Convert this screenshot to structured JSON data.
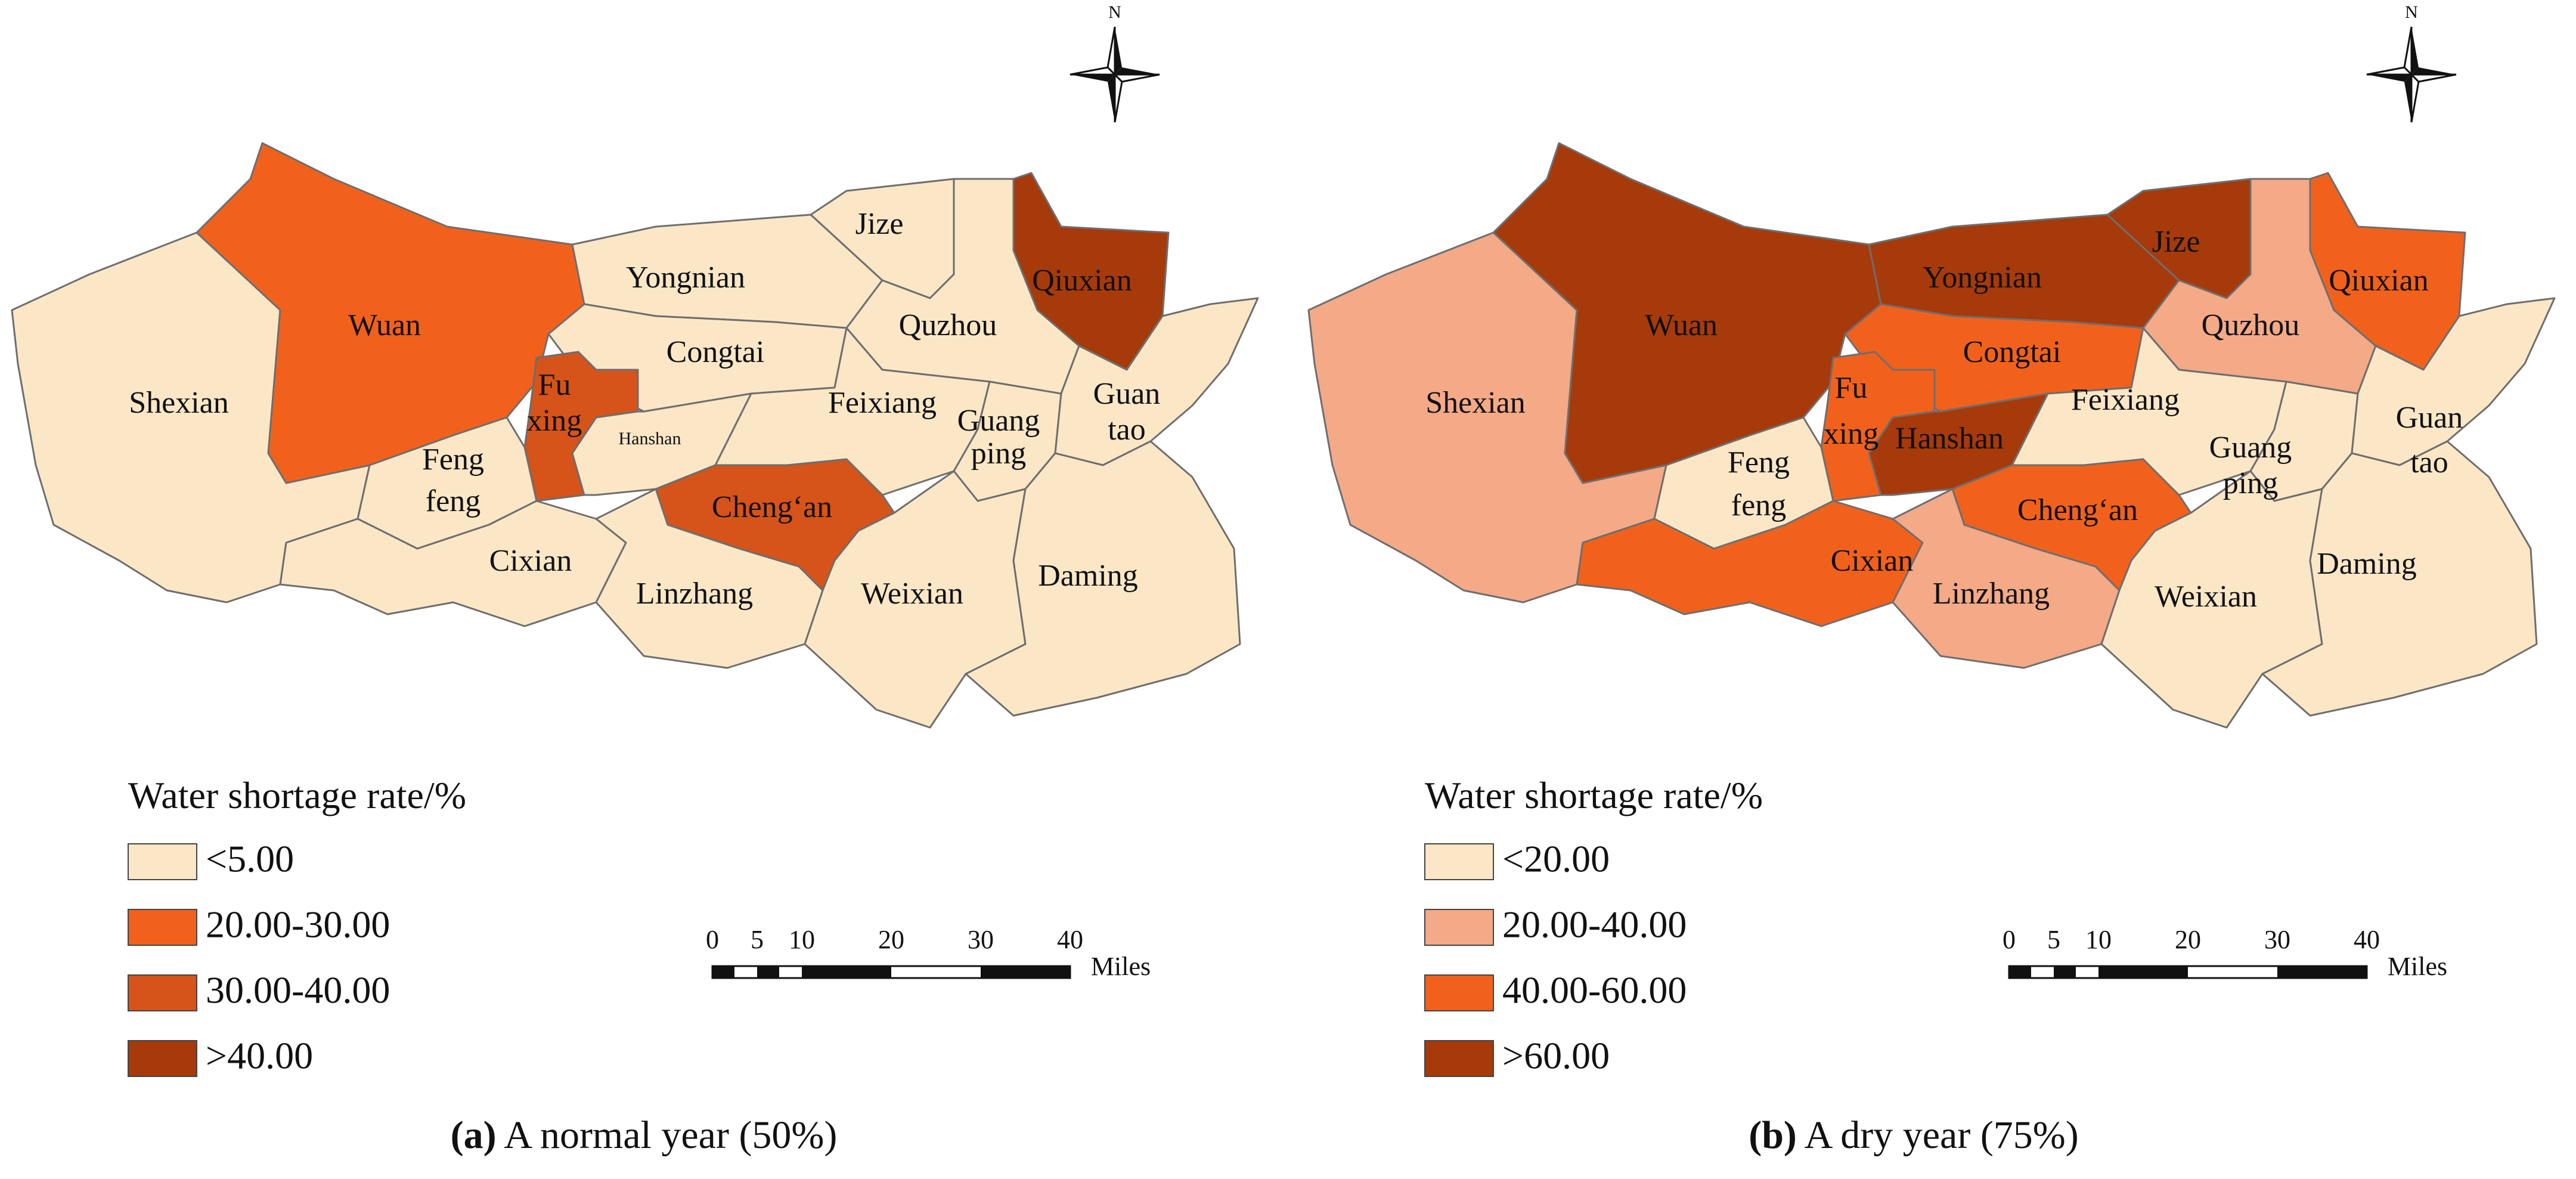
{
  "colors": {
    "lt5": "#fbe7c6",
    "c20_30": "#f2611c",
    "c30_40": "#d6531a",
    "gt40": "#a63a0a",
    "lt20": "#fbe7c6",
    "c20_40": "#f4a987",
    "c40_60": "#f2611c",
    "gt60": "#a63a0a"
  },
  "panels": [
    {
      "id": "a",
      "caption_letter": "(a)",
      "caption_text": " A normal year (50%)",
      "legend_title": "Water shortage rate/%",
      "legend": [
        {
          "label": "<5.00",
          "color_key": "lt5"
        },
        {
          "label": "20.00-30.00",
          "color_key": "c20_30"
        },
        {
          "label": "30.00-40.00",
          "color_key": "c30_40"
        },
        {
          "label": ">40.00",
          "color_key": "gt40"
        }
      ],
      "regions": {
        "Wuan": "c20_30",
        "Shexian": "lt5",
        "Yongnian": "lt5",
        "Jize": "lt5",
        "Qiuxian": "gt40",
        "Quzhou": "lt5",
        "Congtai": "lt5",
        "Fuxing": "c30_40",
        "Hanshan": "lt5",
        "Fengfeng": "lt5",
        "Cixian": "lt5",
        "Linzhang": "lt5",
        "Chengan": "c30_40",
        "Feixiang": "lt5",
        "Guangping": "lt5",
        "Guantao": "lt5",
        "Weixian": "lt5",
        "Daming": "lt5"
      }
    },
    {
      "id": "b",
      "caption_letter": "(b)",
      "caption_text": " A dry year (75%)",
      "legend_title": "Water shortage rate/%",
      "legend": [
        {
          "label": "<20.00",
          "color_key": "lt20"
        },
        {
          "label": "20.00-40.00",
          "color_key": "c20_40"
        },
        {
          "label": "40.00-60.00",
          "color_key": "c40_60"
        },
        {
          "label": ">60.00",
          "color_key": "gt60"
        }
      ],
      "regions": {
        "Wuan": "gt60",
        "Shexian": "c20_40",
        "Yongnian": "gt60",
        "Jize": "gt60",
        "Qiuxian": "c40_60",
        "Quzhou": "c20_40",
        "Congtai": "c40_60",
        "Fuxing": "c40_60",
        "Hanshan": "gt60",
        "Fengfeng": "lt20",
        "Cixian": "c40_60",
        "Linzhang": "c20_40",
        "Chengan": "c40_60",
        "Feixiang": "lt20",
        "Guangping": "lt20",
        "Guantao": "lt20",
        "Weixian": "lt20",
        "Daming": "lt20"
      }
    }
  ],
  "labels": {
    "Wuan": "Wuan",
    "Shexian": "Shexian",
    "Yongnian": "Yongnian",
    "Jize": "Jize",
    "Qiuxian": "Qiuxian",
    "Quzhou": "Quzhou",
    "Congtai": "Congtai",
    "Fuxing_1": "Fu",
    "Fuxing_2": "xing",
    "Hanshan": "Hanshan",
    "Fengfeng_1": "Feng",
    "Fengfeng_2": "feng",
    "Cixian": "Cixian",
    "Linzhang": "Linzhang",
    "Chengan": "Cheng‘an",
    "Feixiang": "Feixiang",
    "Guangping_1": "Guang",
    "Guangping_2": "ping",
    "Guantao_1": "Guan",
    "Guantao_2": "tao",
    "Weixian": "Weixian",
    "Daming": "Daming"
  },
  "compass_label": "N",
  "scale": {
    "ticks": [
      "0",
      "5",
      "10",
      "20",
      "30",
      "40"
    ],
    "unit": "Miles"
  }
}
